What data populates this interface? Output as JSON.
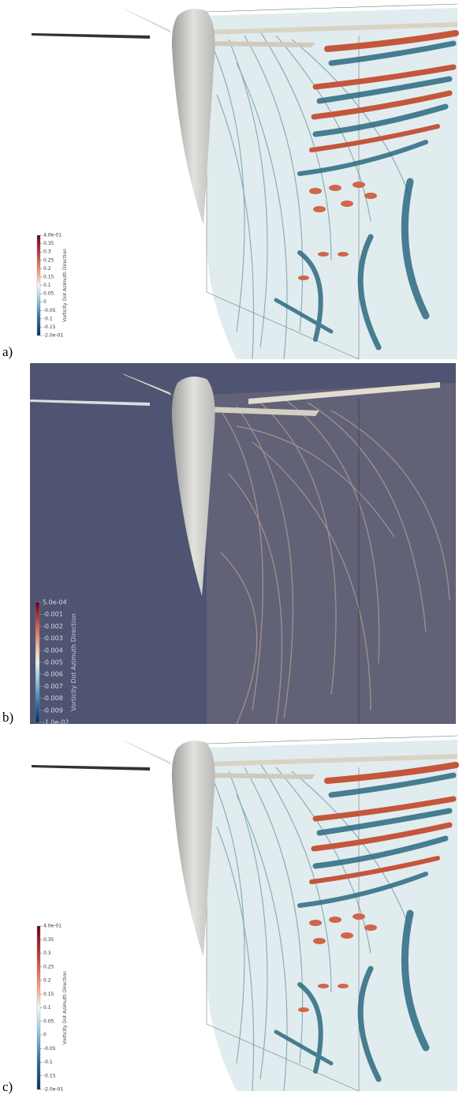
{
  "panels": [
    {
      "label": "a)",
      "colorbar": {
        "title": "Vorticity Dot Azimuth Direction",
        "ticks": [
          "4.0e-01",
          "0.35",
          "0.3",
          "0.25",
          "0.2",
          "0.15",
          "0.1",
          "0.05",
          "0",
          "-0.05",
          "-0.1",
          "-0.15",
          "-2.0e-01"
        ]
      }
    },
    {
      "label": "b)",
      "colorbar": {
        "title": "Vorticity Dot Azimuth Direction",
        "ticks": [
          "5.0e-04",
          "-0.001",
          "-0.002",
          "-0.003",
          "-0.004",
          "-0.005",
          "-0.006",
          "-0.007",
          "-0.008",
          "-0.009",
          "-1.0e-02"
        ]
      }
    },
    {
      "label": "c)",
      "colorbar": {
        "title": "Vorticity Dot Azimuth Direction",
        "ticks": [
          "4.0e-01",
          "0.35",
          "0.3",
          "0.25",
          "0.2",
          "0.15",
          "0.1",
          "0.05",
          "0",
          "-0.05",
          "-0.1",
          "-0.15",
          "-2.0e-01"
        ]
      }
    }
  ]
}
